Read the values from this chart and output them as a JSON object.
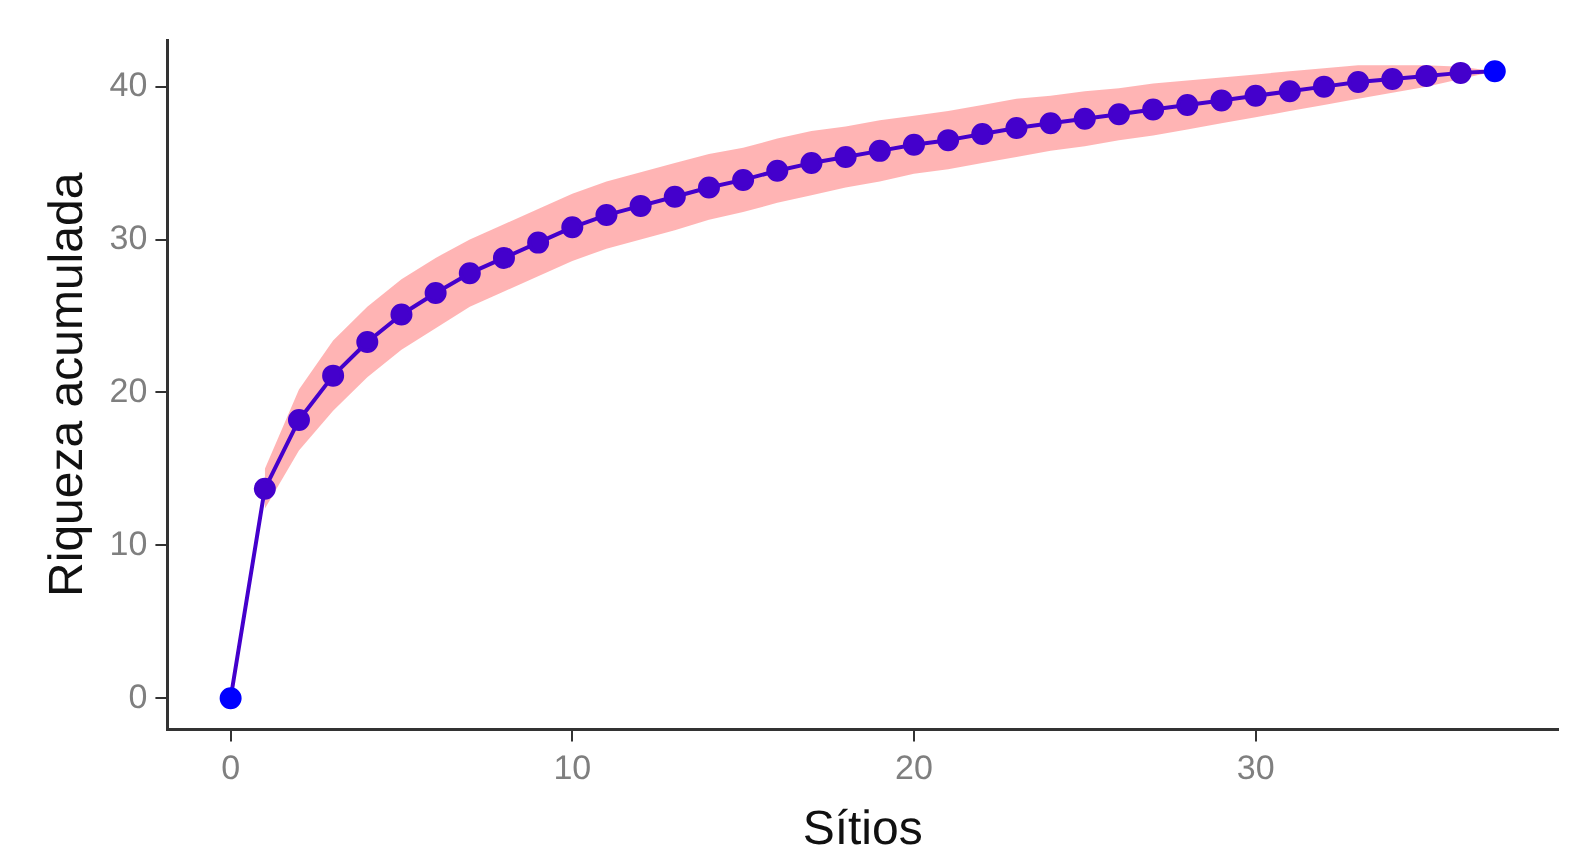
{
  "chart_data": {
    "type": "line",
    "xlabel": "Sítios",
    "ylabel": "Riqueza acumulada",
    "x": [
      0,
      1,
      2,
      3,
      4,
      5,
      6,
      7,
      8,
      9,
      10,
      11,
      12,
      13,
      14,
      15,
      16,
      17,
      18,
      19,
      20,
      21,
      22,
      23,
      24,
      25,
      26,
      27,
      28,
      29,
      30,
      31,
      32,
      33,
      34,
      35,
      36,
      37
    ],
    "series": [
      {
        "color": "#4400cc",
        "colors": [
          "#0000ff",
          "#4400cc",
          "#4400cc",
          "#4400cc",
          "#4400cc",
          "#4400cc",
          "#4400cc",
          "#4400cc",
          "#4400cc",
          "#4400cc",
          "#4400cc",
          "#4400cc",
          "#4400cc",
          "#4400cc",
          "#4400cc",
          "#4400cc",
          "#4400cc",
          "#4400cc",
          "#4400cc",
          "#4400cc",
          "#4400cc",
          "#4400cc",
          "#4400cc",
          "#4400cc",
          "#4400cc",
          "#4400cc",
          "#4400cc",
          "#4400cc",
          "#4400cc",
          "#4400cc",
          "#4400cc",
          "#4400cc",
          "#4400cc",
          "#4400cc",
          "#4400cc",
          "#4400cc",
          "#4400cc",
          "#0000ff"
        ],
        "values": [
          0,
          13.7,
          18.2,
          21.1,
          23.3,
          25.1,
          26.5,
          27.8,
          28.8,
          29.8,
          30.8,
          31.6,
          32.2,
          32.8,
          33.4,
          33.9,
          34.5,
          35.0,
          35.4,
          35.8,
          36.2,
          36.5,
          36.9,
          37.3,
          37.6,
          37.9,
          38.2,
          38.5,
          38.8,
          39.1,
          39.4,
          39.7,
          40.0,
          40.3,
          40.5,
          40.7,
          40.9,
          41.0
        ],
        "lower": [
          null,
          12.4,
          16.2,
          18.8,
          21.0,
          22.8,
          24.2,
          25.6,
          26.6,
          27.6,
          28.6,
          29.4,
          30.0,
          30.6,
          31.3,
          31.8,
          32.4,
          32.9,
          33.4,
          33.8,
          34.3,
          34.6,
          35.0,
          35.4,
          35.8,
          36.1,
          36.5,
          36.8,
          37.2,
          37.6,
          38.0,
          38.4,
          38.8,
          39.2,
          39.6,
          40.0,
          40.5,
          41.0
        ],
        "upper": [
          null,
          15.0,
          20.2,
          23.4,
          25.6,
          27.4,
          28.8,
          30.0,
          31.0,
          32.0,
          33.0,
          33.8,
          34.4,
          35.0,
          35.6,
          36.0,
          36.6,
          37.1,
          37.4,
          37.8,
          38.1,
          38.4,
          38.8,
          39.2,
          39.4,
          39.7,
          39.9,
          40.2,
          40.4,
          40.6,
          40.8,
          41.0,
          41.2,
          41.4,
          41.4,
          41.4,
          41.3,
          41.0
        ]
      }
    ],
    "xlim": [
      -1.85,
      38.85
    ],
    "xticks": [
      0,
      10,
      20,
      30
    ],
    "ylim": [
      -2.05,
      43.05
    ],
    "yticks": [
      0,
      10,
      20,
      30,
      40
    ],
    "marker": "circle",
    "line_style": "solid",
    "grid": false,
    "legend": false
  }
}
